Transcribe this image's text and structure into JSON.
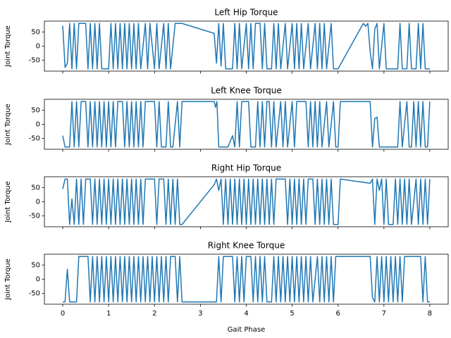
{
  "chart_data": [
    {
      "type": "line",
      "title": "Left Hip Torque",
      "ylabel": "Joint Torque",
      "color": "#1f77b4",
      "xlim": [
        -0.4,
        8.4
      ],
      "ylim": [
        -88,
        88
      ],
      "xticks": [
        0,
        1,
        2,
        3,
        4,
        5,
        6,
        7,
        8
      ],
      "yticks": [
        -50,
        0,
        50
      ],
      "x": [
        0,
        0.05,
        0.1,
        0.15,
        0.2,
        0.25,
        0.3,
        0.35,
        0.5,
        0.55,
        0.6,
        0.65,
        0.7,
        0.75,
        0.8,
        0.85,
        1.0,
        1.05,
        1.1,
        1.15,
        1.2,
        1.25,
        1.3,
        1.35,
        1.4,
        1.45,
        1.5,
        1.55,
        1.6,
        1.65,
        1.7,
        1.8,
        1.85,
        1.9,
        2.0,
        2.05,
        2.1,
        2.2,
        2.25,
        2.3,
        2.35,
        2.45,
        2.6,
        3.3,
        3.35,
        3.4,
        3.45,
        3.5,
        3.55,
        3.7,
        3.75,
        3.8,
        3.85,
        3.9,
        4.0,
        4.05,
        4.1,
        4.15,
        4.2,
        4.3,
        4.35,
        4.4,
        4.45,
        4.55,
        4.6,
        4.65,
        4.7,
        4.75,
        4.85,
        4.9,
        5.0,
        5.05,
        5.1,
        5.15,
        5.2,
        5.25,
        5.35,
        5.4,
        5.5,
        5.55,
        5.6,
        5.65,
        5.7,
        5.75,
        5.85,
        5.9,
        6.0,
        6.55,
        6.6,
        6.65,
        6.7,
        6.75,
        6.8,
        6.85,
        6.9,
        7.0,
        7.05,
        7.3,
        7.35,
        7.4,
        7.5,
        7.55,
        7.6,
        7.7,
        7.75,
        7.8,
        7.85,
        7.9,
        8.0
      ],
      "values": [
        72,
        -75,
        -60,
        80,
        -80,
        80,
        -80,
        80,
        80,
        -80,
        80,
        -80,
        80,
        -80,
        80,
        -80,
        -80,
        80,
        -80,
        80,
        -80,
        80,
        -80,
        80,
        -80,
        80,
        -80,
        80,
        -80,
        80,
        -80,
        80,
        -80,
        80,
        -80,
        80,
        -80,
        80,
        -80,
        80,
        -80,
        80,
        80,
        45,
        -60,
        80,
        -70,
        80,
        -80,
        -80,
        80,
        -80,
        80,
        -80,
        80,
        -80,
        80,
        -80,
        80,
        80,
        -80,
        80,
        -80,
        -80,
        80,
        -80,
        80,
        -80,
        80,
        -80,
        80,
        -80,
        80,
        -80,
        80,
        -80,
        80,
        -80,
        80,
        -80,
        80,
        -80,
        80,
        -80,
        80,
        -80,
        -80,
        80,
        70,
        80,
        -20,
        -80,
        60,
        80,
        -80,
        80,
        -80,
        -80,
        80,
        -80,
        -80,
        80,
        -80,
        -80,
        80,
        -80,
        80,
        -80,
        -80
      ]
    },
    {
      "type": "line",
      "title": "Left Knee Torque",
      "ylabel": "Joint Torque",
      "color": "#1f77b4",
      "xlim": [
        -0.4,
        8.4
      ],
      "ylim": [
        -88,
        88
      ],
      "xticks": [
        0,
        1,
        2,
        3,
        4,
        5,
        6,
        7,
        8
      ],
      "yticks": [
        -50,
        0,
        50
      ],
      "x": [
        0,
        0.05,
        0.15,
        0.2,
        0.25,
        0.3,
        0.35,
        0.4,
        0.5,
        0.55,
        0.6,
        0.65,
        0.7,
        0.75,
        0.8,
        0.85,
        0.9,
        0.95,
        1.0,
        1.05,
        1.1,
        1.15,
        1.2,
        1.3,
        1.35,
        1.4,
        1.45,
        1.5,
        1.55,
        1.6,
        1.65,
        1.7,
        1.75,
        1.8,
        2.0,
        2.05,
        2.1,
        2.15,
        2.25,
        2.3,
        2.35,
        2.4,
        2.5,
        2.55,
        2.6,
        3.3,
        3.33,
        3.36,
        3.4,
        3.6,
        3.7,
        3.75,
        3.8,
        3.85,
        3.9,
        4.05,
        4.1,
        4.2,
        4.25,
        4.3,
        4.35,
        4.4,
        4.45,
        4.5,
        4.55,
        4.6,
        4.65,
        4.75,
        4.8,
        4.85,
        4.9,
        5.0,
        5.05,
        5.1,
        5.3,
        5.35,
        5.4,
        5.45,
        5.5,
        5.55,
        5.6,
        5.65,
        5.75,
        5.8,
        5.9,
        5.95,
        6.0,
        6.05,
        6.7,
        6.75,
        6.8,
        6.85,
        6.9,
        7.3,
        7.35,
        7.4,
        7.5,
        7.55,
        7.6,
        7.65,
        7.7,
        7.75,
        7.8,
        7.85,
        7.9,
        7.95,
        8.0
      ],
      "values": [
        -40,
        -80,
        -80,
        80,
        -80,
        80,
        -80,
        80,
        80,
        -80,
        80,
        -80,
        80,
        -80,
        80,
        -80,
        80,
        -80,
        80,
        -80,
        80,
        -80,
        80,
        80,
        -80,
        80,
        -80,
        80,
        -80,
        80,
        -80,
        80,
        -80,
        80,
        80,
        -80,
        80,
        -80,
        -80,
        80,
        -80,
        -80,
        80,
        -80,
        80,
        80,
        60,
        80,
        -80,
        -80,
        -40,
        -80,
        80,
        -80,
        80,
        80,
        -80,
        -80,
        80,
        -80,
        80,
        -80,
        80,
        80,
        -80,
        80,
        -80,
        80,
        -80,
        80,
        -80,
        80,
        -80,
        80,
        80,
        -80,
        80,
        -80,
        80,
        -80,
        80,
        -80,
        80,
        -80,
        80,
        -80,
        -80,
        80,
        80,
        -80,
        20,
        25,
        -80,
        -80,
        80,
        -80,
        80,
        -80,
        -80,
        80,
        -80,
        80,
        -80,
        80,
        -80,
        -80,
        80
      ]
    },
    {
      "type": "line",
      "title": "Right Hip Torque",
      "ylabel": "Joint Torque",
      "color": "#1f77b4",
      "xlim": [
        -0.4,
        8.4
      ],
      "ylim": [
        -88,
        88
      ],
      "xticks": [
        0,
        1,
        2,
        3,
        4,
        5,
        6,
        7,
        8
      ],
      "yticks": [
        -50,
        0,
        50
      ],
      "x": [
        0,
        0.05,
        0.1,
        0.15,
        0.2,
        0.25,
        0.3,
        0.35,
        0.4,
        0.45,
        0.5,
        0.6,
        0.65,
        0.7,
        0.75,
        0.8,
        0.85,
        0.9,
        0.95,
        1.0,
        1.05,
        1.1,
        1.15,
        1.2,
        1.25,
        1.3,
        1.35,
        1.4,
        1.45,
        1.5,
        1.55,
        1.6,
        1.65,
        1.7,
        1.75,
        1.8,
        2.0,
        2.05,
        2.1,
        2.2,
        2.25,
        2.3,
        2.35,
        2.4,
        2.45,
        2.5,
        2.55,
        2.6,
        3.3,
        3.35,
        3.4,
        3.45,
        3.5,
        3.55,
        3.6,
        3.65,
        3.7,
        3.75,
        3.8,
        3.85,
        3.9,
        3.95,
        4.0,
        4.05,
        4.1,
        4.15,
        4.2,
        4.25,
        4.3,
        4.35,
        4.4,
        4.45,
        4.5,
        4.55,
        4.6,
        4.65,
        4.85,
        4.9,
        4.95,
        5.0,
        5.05,
        5.1,
        5.15,
        5.2,
        5.25,
        5.3,
        5.35,
        5.45,
        5.5,
        5.55,
        5.6,
        5.65,
        5.7,
        5.75,
        5.8,
        5.85,
        5.9,
        6.0,
        6.05,
        6.7,
        6.75,
        6.8,
        6.85,
        6.9,
        6.95,
        7.0,
        7.05,
        7.1,
        7.2,
        7.25,
        7.3,
        7.35,
        7.4,
        7.45,
        7.5,
        7.55,
        7.6,
        7.7,
        7.75,
        7.8,
        7.85,
        7.9,
        7.95,
        8.0
      ],
      "values": [
        45,
        80,
        80,
        -80,
        10,
        -80,
        80,
        -80,
        80,
        -80,
        80,
        80,
        -80,
        80,
        -80,
        80,
        -80,
        80,
        -80,
        80,
        -80,
        80,
        -80,
        80,
        -80,
        80,
        -80,
        80,
        -80,
        80,
        -80,
        80,
        -80,
        80,
        -80,
        80,
        80,
        -80,
        80,
        80,
        -80,
        80,
        -80,
        80,
        -80,
        80,
        -80,
        -80,
        60,
        80,
        40,
        80,
        -80,
        80,
        -80,
        80,
        -80,
        80,
        -80,
        80,
        -80,
        80,
        -80,
        80,
        -80,
        80,
        -80,
        80,
        -80,
        80,
        -80,
        80,
        -80,
        80,
        -80,
        80,
        80,
        -80,
        80,
        -80,
        80,
        -80,
        80,
        -80,
        80,
        -80,
        80,
        80,
        -80,
        80,
        -80,
        80,
        -80,
        80,
        -80,
        80,
        -80,
        -80,
        80,
        65,
        80,
        -80,
        80,
        40,
        80,
        -80,
        80,
        -80,
        -80,
        80,
        -80,
        80,
        -80,
        80,
        -80,
        80,
        -80,
        80,
        -80,
        80,
        -80,
        80,
        -80,
        80
      ]
    },
    {
      "type": "line",
      "title": "Right Knee Torque",
      "ylabel": "Joint Torque",
      "xlabel": "Gait Phase",
      "color": "#1f77b4",
      "xlim": [
        -0.4,
        8.4
      ],
      "ylim": [
        -88,
        88
      ],
      "xticks": [
        0,
        1,
        2,
        3,
        4,
        5,
        6,
        7,
        8
      ],
      "yticks": [
        -50,
        0,
        50
      ],
      "x": [
        0,
        0.05,
        0.1,
        0.15,
        0.3,
        0.35,
        0.55,
        0.6,
        0.65,
        0.7,
        0.75,
        0.8,
        0.85,
        0.9,
        0.95,
        1.0,
        1.05,
        1.1,
        1.15,
        1.2,
        1.25,
        1.3,
        1.35,
        1.4,
        1.45,
        1.5,
        1.55,
        1.6,
        1.65,
        1.7,
        1.75,
        1.8,
        1.85,
        1.9,
        1.95,
        2.0,
        2.05,
        2.1,
        2.15,
        2.2,
        2.25,
        2.3,
        2.35,
        2.45,
        2.5,
        2.55,
        2.6,
        3.35,
        3.4,
        3.45,
        3.5,
        3.7,
        3.75,
        3.8,
        3.85,
        3.9,
        3.95,
        4.0,
        4.1,
        4.15,
        4.2,
        4.25,
        4.3,
        4.35,
        4.4,
        4.45,
        4.55,
        4.6,
        4.65,
        4.7,
        4.75,
        4.8,
        4.85,
        4.9,
        4.95,
        5.0,
        5.05,
        5.1,
        5.15,
        5.2,
        5.25,
        5.3,
        5.35,
        5.4,
        5.45,
        5.55,
        5.6,
        5.65,
        5.7,
        5.75,
        5.8,
        5.85,
        5.9,
        5.95,
        6.7,
        6.75,
        6.8,
        6.85,
        6.9,
        6.95,
        7.0,
        7.05,
        7.1,
        7.15,
        7.2,
        7.25,
        7.3,
        7.35,
        7.4,
        7.45,
        7.8,
        7.85,
        7.9,
        7.95,
        8.0
      ],
      "values": [
        -80,
        -80,
        35,
        -80,
        -80,
        80,
        80,
        -80,
        80,
        -80,
        80,
        -80,
        80,
        -80,
        80,
        -80,
        80,
        -80,
        80,
        -80,
        80,
        -80,
        80,
        -80,
        80,
        -80,
        80,
        -80,
        80,
        -80,
        80,
        -80,
        80,
        -80,
        80,
        -80,
        80,
        -80,
        80,
        -80,
        80,
        -80,
        80,
        80,
        -80,
        80,
        -80,
        -80,
        80,
        -80,
        80,
        80,
        -80,
        80,
        -80,
        80,
        -80,
        80,
        80,
        -80,
        80,
        -80,
        80,
        -80,
        80,
        -80,
        -80,
        80,
        -80,
        80,
        -80,
        80,
        -80,
        80,
        -80,
        80,
        -80,
        80,
        -80,
        80,
        -80,
        80,
        -80,
        80,
        -80,
        80,
        -80,
        80,
        -80,
        80,
        -80,
        80,
        -80,
        80,
        80,
        -65,
        -80,
        80,
        -80,
        80,
        -80,
        80,
        -80,
        80,
        -80,
        80,
        -80,
        80,
        -80,
        80,
        80,
        -80,
        80,
        -80,
        -80
      ]
    }
  ]
}
